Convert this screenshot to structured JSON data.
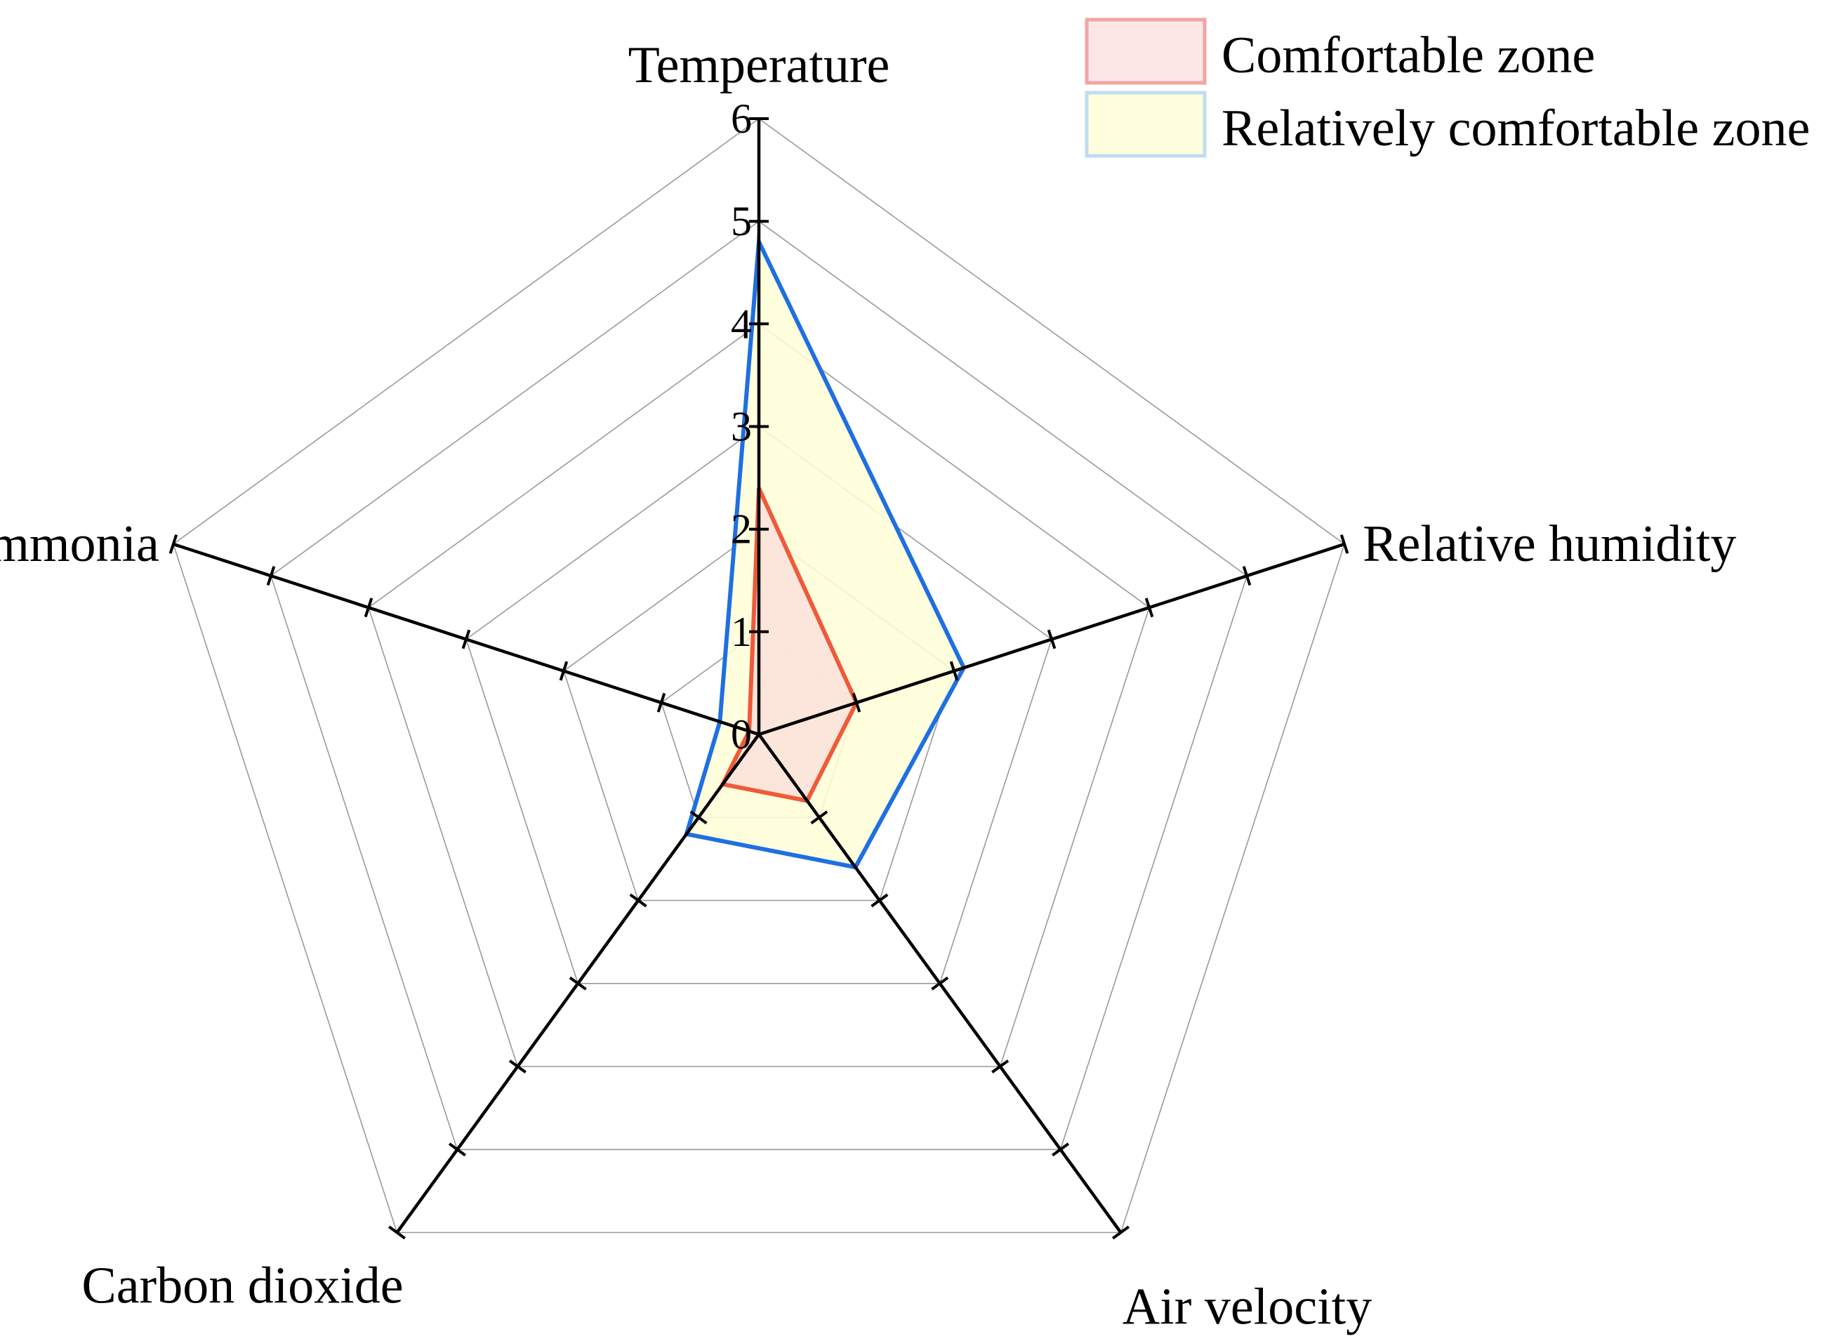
{
  "chart_data": {
    "type": "radar",
    "axes": [
      "Temperature",
      "Relative humidity",
      "Air velocity",
      "Carbon dioxide",
      "Ammonia"
    ],
    "range": [
      0,
      6
    ],
    "ticks": [
      "0",
      "1",
      "2",
      "3",
      "4",
      "5",
      "6"
    ],
    "grid": true,
    "legend_position": "top-right",
    "series": [
      {
        "name": "Relatively comfortable zone",
        "values": [
          4.8,
          2.1,
          1.6,
          1.2,
          0.4
        ],
        "fill": "#FFFFD8",
        "stroke": "#1F6FE0"
      },
      {
        "name": "Comfortable zone",
        "values": [
          2.4,
          1.0,
          0.8,
          0.6,
          0.1
        ],
        "fill": "#FCE0DA",
        "stroke": "#EE5A3A"
      }
    ],
    "legend": [
      {
        "label": "Comfortable zone",
        "fill": "#FDE6E6",
        "stroke": "#F4A3A3"
      },
      {
        "label": "Relatively comfortable zone",
        "fill": "#FFFFDD",
        "stroke": "#BFDDF2"
      }
    ]
  }
}
